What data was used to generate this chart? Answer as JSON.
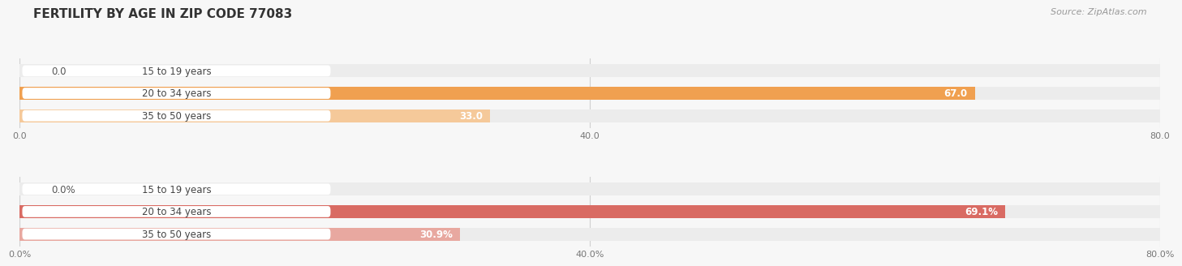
{
  "title": "FERTILITY BY AGE IN ZIP CODE 77083",
  "source": "Source: ZipAtlas.com",
  "top_chart": {
    "categories": [
      "15 to 19 years",
      "20 to 34 years",
      "35 to 50 years"
    ],
    "values": [
      0.0,
      67.0,
      33.0
    ],
    "bar_color_full": "#f0a050",
    "bar_color_light": "#f5c99a",
    "bar_bg_color": "#ececec",
    "xlim": [
      0,
      80
    ],
    "xticks": [
      0.0,
      40.0,
      80.0
    ],
    "xtick_labels": [
      "0.0",
      "40.0",
      "80.0"
    ],
    "value_labels": [
      "0.0",
      "67.0",
      "33.0"
    ]
  },
  "bottom_chart": {
    "categories": [
      "15 to 19 years",
      "20 to 34 years",
      "35 to 50 years"
    ],
    "values": [
      0.0,
      69.1,
      30.9
    ],
    "bar_color_full": "#d96b63",
    "bar_color_light": "#e8a8a0",
    "bar_bg_color": "#ececec",
    "xlim": [
      0,
      80
    ],
    "xticks": [
      0.0,
      40.0,
      80.0
    ],
    "xtick_labels": [
      "0.0%",
      "40.0%",
      "80.0%"
    ],
    "value_labels": [
      "0.0%",
      "69.1%",
      "30.9%"
    ]
  },
  "fig_bg": "#f7f7f7",
  "plot_bg": "#f7f7f7",
  "label_fontsize": 8.5,
  "title_fontsize": 11,
  "source_fontsize": 8,
  "tick_fontsize": 8,
  "cat_fontsize": 8.5
}
